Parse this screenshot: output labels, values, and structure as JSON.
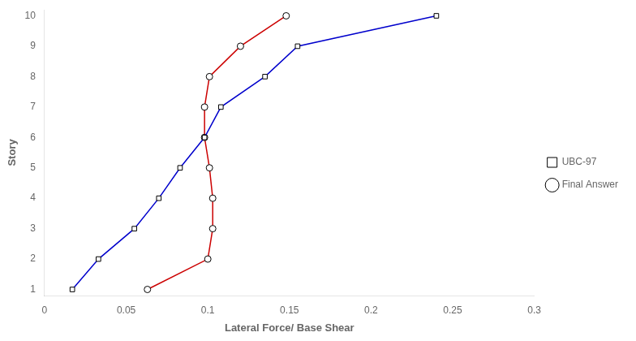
{
  "chart_data": {
    "type": "line",
    "xlabel": "Lateral Force/ Base Shear",
    "ylabel": "Story",
    "xlim": [
      0,
      0.3
    ],
    "ylim": [
      0.8,
      10.2
    ],
    "xticks": [
      0,
      0.05,
      0.1,
      0.15,
      0.2,
      0.25,
      0.3
    ],
    "yticks": [
      1,
      2,
      3,
      4,
      5,
      6,
      7,
      8,
      9,
      10
    ],
    "grid": false,
    "legend": "right",
    "series": [
      {
        "name": "UBC-97",
        "color": "#0000CC",
        "marker": "square",
        "x": [
          0.017,
          0.033,
          0.055,
          0.07,
          0.083,
          0.098,
          0.108,
          0.135,
          0.155,
          0.24
        ],
        "values": [
          1,
          2,
          3,
          4,
          5,
          6,
          7,
          8,
          9,
          10
        ]
      },
      {
        "name": "Final Answer",
        "color": "#CC0000",
        "marker": "circle",
        "x": [
          0.063,
          0.1,
          0.103,
          0.103,
          0.101,
          0.098,
          0.098,
          0.101,
          0.12,
          0.148
        ],
        "values": [
          1,
          2,
          3,
          4,
          5,
          6,
          7,
          8,
          9,
          10
        ]
      }
    ]
  }
}
